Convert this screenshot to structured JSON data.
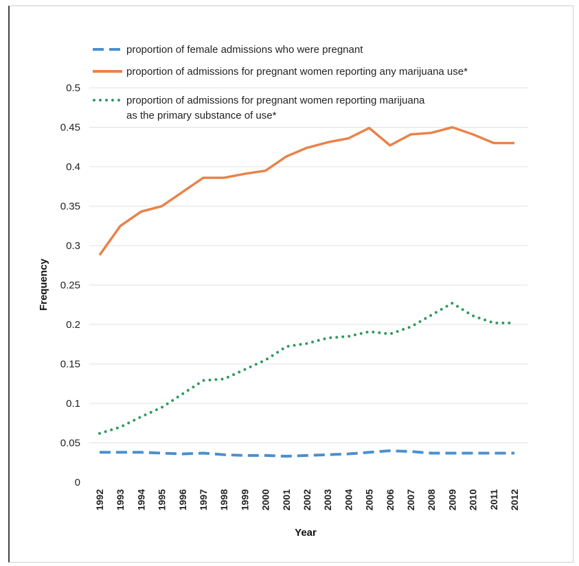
{
  "chart_data": {
    "type": "line",
    "title": "",
    "xlabel": "Year",
    "ylabel": "Frequency",
    "ylim": [
      0,
      0.5
    ],
    "yticks": [
      "0",
      "0.05",
      "0.1",
      "0.15",
      "0.2",
      "0.25",
      "0.3",
      "0.35",
      "0.4",
      "0.45",
      "0.5"
    ],
    "grid": true,
    "legend": "top-left",
    "x": [
      "1992",
      "1993",
      "1994",
      "1995",
      "1996",
      "1997",
      "1998",
      "1999",
      "2000",
      "2001",
      "2002",
      "2003",
      "2004",
      "2005",
      "2006",
      "2007",
      "2008",
      "2009",
      "2010",
      "2011",
      "2012"
    ],
    "series": [
      {
        "name": "proportion of female admissions who were pregnant",
        "style": "dashed",
        "color": "#4a8fd0",
        "values": [
          0.038,
          0.038,
          0.038,
          0.037,
          0.036,
          0.037,
          0.035,
          0.034,
          0.034,
          0.033,
          0.034,
          0.035,
          0.036,
          0.038,
          0.04,
          0.039,
          0.037,
          0.037,
          0.037,
          0.037,
          0.037
        ]
      },
      {
        "name": "proportion of admissions for pregnant women reporting any marijuana use*",
        "style": "solid",
        "color": "#e8834a",
        "values": [
          0.288,
          0.325,
          0.343,
          0.35,
          0.368,
          0.386,
          0.386,
          0.391,
          0.395,
          0.413,
          0.424,
          0.431,
          0.436,
          0.449,
          0.427,
          0.441,
          0.443,
          0.45,
          0.441,
          0.43,
          0.43
        ]
      },
      {
        "name": "proportion of admissions for pregnant women reporting marijuana",
        "name_line2": "as the primary substance of use*",
        "style": "dotted",
        "color": "#2f9a5e",
        "values": [
          0.062,
          0.07,
          0.083,
          0.095,
          0.112,
          0.129,
          0.131,
          0.143,
          0.155,
          0.172,
          0.176,
          0.183,
          0.185,
          0.191,
          0.188,
          0.197,
          0.212,
          0.227,
          0.211,
          0.202,
          0.202
        ]
      }
    ]
  }
}
